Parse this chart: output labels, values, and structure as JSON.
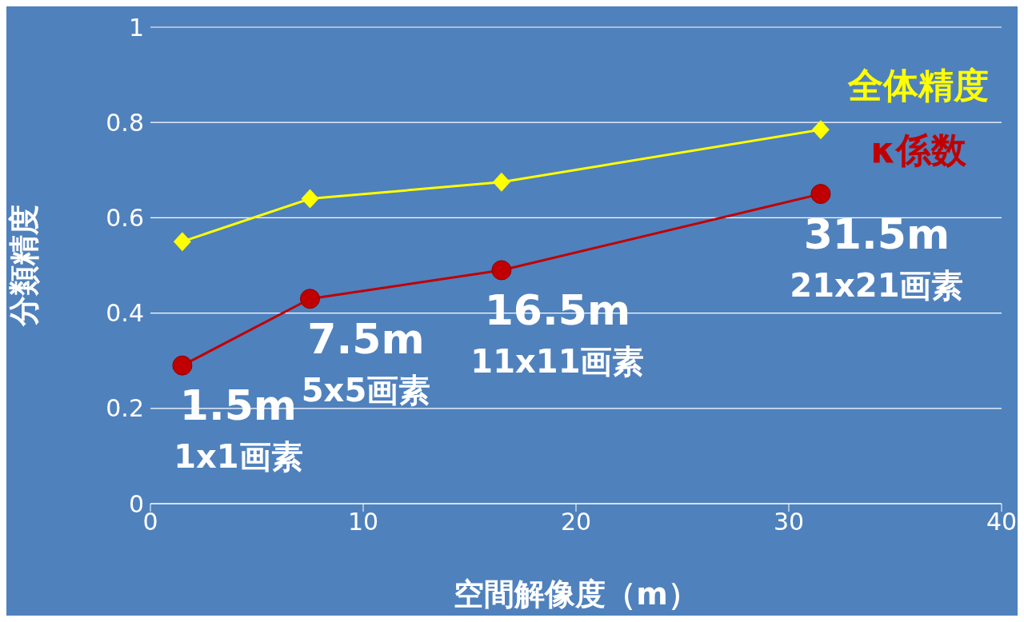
{
  "chart_data": {
    "type": "line",
    "xlabel": "空間解像度（m）",
    "ylabel": "分類精度",
    "series": [
      {
        "name": "全体精度",
        "color": "#ffff00",
        "marker": "diamond",
        "x": [
          1.5,
          7.5,
          16.5,
          31.5
        ],
        "values": [
          0.55,
          0.64,
          0.675,
          0.785
        ]
      },
      {
        "name": "κ係数",
        "color": "#c00000",
        "marker": "circle",
        "x": [
          1.5,
          7.5,
          16.5,
          31.5
        ],
        "values": [
          0.29,
          0.43,
          0.49,
          0.65
        ]
      }
    ],
    "xlim": [
      0,
      40
    ],
    "xticks": [
      0,
      10,
      20,
      30,
      40
    ],
    "ylim": [
      0,
      1
    ],
    "yticks": [
      0,
      {
        "value": 0.2,
        "label": "0.2"
      },
      {
        "value": 0.4,
        "label": "0.4"
      },
      {
        "value": 0.6,
        "label": "0.6"
      },
      {
        "value": 0.8,
        "label": "0.8"
      },
      1
    ],
    "grid": "y",
    "legend": false,
    "annotations": [
      {
        "text": "1.5m",
        "x": 1.5,
        "y": 0.29
      },
      {
        "text": "1x1画素",
        "x": 1.5,
        "y": 0.29
      },
      {
        "text": "7.5m",
        "x": 7.5,
        "y": 0.43
      },
      {
        "text": "5x5画素",
        "x": 7.5,
        "y": 0.43
      },
      {
        "text": "16.5m",
        "x": 16.5,
        "y": 0.49
      },
      {
        "text": "11x11画素",
        "x": 16.5,
        "y": 0.49
      },
      {
        "text": "31.5m",
        "x": 31.5,
        "y": 0.65
      },
      {
        "text": "21x21画素",
        "x": 31.5,
        "y": 0.65
      }
    ]
  }
}
